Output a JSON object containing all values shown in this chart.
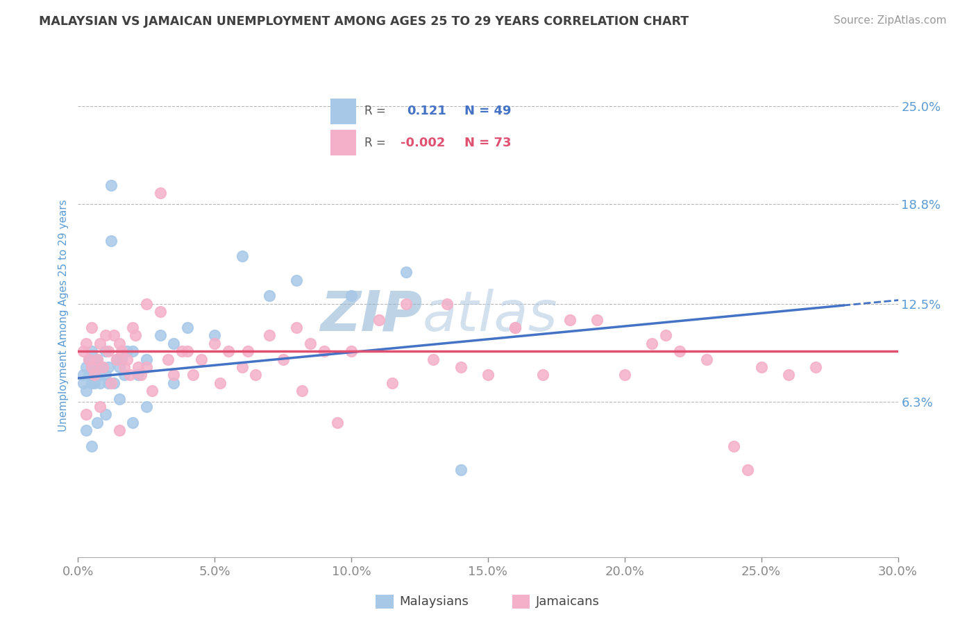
{
  "title": "MALAYSIAN VS JAMAICAN UNEMPLOYMENT AMONG AGES 25 TO 29 YEARS CORRELATION CHART",
  "source_text": "Source: ZipAtlas.com",
  "ylabel": "Unemployment Among Ages 25 to 29 years",
  "xlim": [
    0.0,
    30.0
  ],
  "ylim": [
    -3.5,
    27.0
  ],
  "ytick_vals": [
    6.3,
    12.5,
    18.8,
    25.0
  ],
  "ytick_labels": [
    "6.3%",
    "12.5%",
    "18.8%",
    "25.0%"
  ],
  "xtick_vals": [
    0.0,
    5.0,
    10.0,
    15.0,
    20.0,
    25.0,
    30.0
  ],
  "xtick_labels": [
    "0.0%",
    "5.0%",
    "10.0%",
    "15.0%",
    "20.0%",
    "25.0%",
    "30.0%"
  ],
  "malaysian_dot_color": "#a8c8e8",
  "jamaican_dot_color": "#f4b0c8",
  "malaysian_line_color": "#4472c4",
  "jamaican_line_color": "#e05070",
  "title_color": "#404040",
  "tick_color": "#5b9bd5",
  "watermark_color": "#c8d8ee",
  "grid_color": "#b8b8b8",
  "bg_color": "#ffffff",
  "malaysian_line_x0": 0.0,
  "malaysian_line_y0": 7.8,
  "malaysian_line_x1": 28.0,
  "malaysian_line_y1": 12.4,
  "jamaican_line_y": 9.5,
  "malaysian_x": [
    0.2,
    0.2,
    0.3,
    0.3,
    0.4,
    0.4,
    0.5,
    0.5,
    0.5,
    0.6,
    0.6,
    0.7,
    0.7,
    0.8,
    0.8,
    0.9,
    1.0,
    1.0,
    1.1,
    1.1,
    1.2,
    1.3,
    1.4,
    1.5,
    1.6,
    1.7,
    1.8,
    2.0,
    2.2,
    2.5,
    3.0,
    3.5,
    4.0,
    5.0,
    6.0,
    7.0,
    8.0,
    10.0,
    12.0,
    14.0,
    0.3,
    0.5,
    0.7,
    1.0,
    1.5,
    2.0,
    2.5,
    3.5,
    1.2
  ],
  "malaysian_y": [
    8.0,
    7.5,
    8.5,
    7.0,
    8.0,
    9.0,
    8.5,
    7.5,
    9.5,
    8.0,
    7.5,
    8.5,
    9.0,
    7.5,
    8.0,
    8.5,
    9.5,
    8.0,
    7.5,
    8.5,
    20.0,
    7.5,
    9.0,
    8.5,
    9.0,
    8.0,
    9.5,
    9.5,
    8.0,
    9.0,
    10.5,
    10.0,
    11.0,
    10.5,
    15.5,
    13.0,
    14.0,
    13.0,
    14.5,
    2.0,
    4.5,
    3.5,
    5.0,
    5.5,
    6.5,
    5.0,
    6.0,
    7.5,
    16.5
  ],
  "jamaican_x": [
    0.2,
    0.3,
    0.4,
    0.5,
    0.5,
    0.6,
    0.7,
    0.8,
    0.9,
    1.0,
    1.1,
    1.2,
    1.3,
    1.4,
    1.5,
    1.6,
    1.7,
    1.8,
    1.9,
    2.0,
    2.1,
    2.2,
    2.3,
    2.5,
    2.7,
    3.0,
    3.3,
    3.5,
    3.8,
    4.0,
    4.5,
    5.0,
    5.5,
    6.0,
    6.5,
    7.0,
    7.5,
    8.0,
    8.5,
    9.0,
    10.0,
    11.0,
    12.0,
    13.0,
    14.0,
    15.0,
    16.0,
    17.0,
    18.0,
    19.0,
    20.0,
    21.0,
    22.0,
    23.0,
    24.0,
    25.0,
    26.0,
    27.0,
    0.3,
    0.8,
    1.5,
    2.5,
    3.0,
    4.2,
    5.2,
    6.2,
    8.2,
    9.5,
    11.5,
    13.5,
    16.0,
    21.5,
    24.5
  ],
  "jamaican_y": [
    9.5,
    10.0,
    9.0,
    11.0,
    8.5,
    8.0,
    9.0,
    10.0,
    8.5,
    10.5,
    9.5,
    7.5,
    10.5,
    9.0,
    10.0,
    9.5,
    8.5,
    9.0,
    8.0,
    11.0,
    10.5,
    8.5,
    8.0,
    8.5,
    7.0,
    12.0,
    9.0,
    8.0,
    9.5,
    9.5,
    9.0,
    10.0,
    9.5,
    8.5,
    8.0,
    10.5,
    9.0,
    11.0,
    10.0,
    9.5,
    9.5,
    11.5,
    12.5,
    9.0,
    8.5,
    8.0,
    11.0,
    8.0,
    11.5,
    11.5,
    8.0,
    10.0,
    9.5,
    9.0,
    3.5,
    8.5,
    8.0,
    8.5,
    5.5,
    6.0,
    4.5,
    12.5,
    19.5,
    8.0,
    7.5,
    9.5,
    7.0,
    5.0,
    7.5,
    12.5,
    11.0,
    10.5,
    2.0
  ]
}
